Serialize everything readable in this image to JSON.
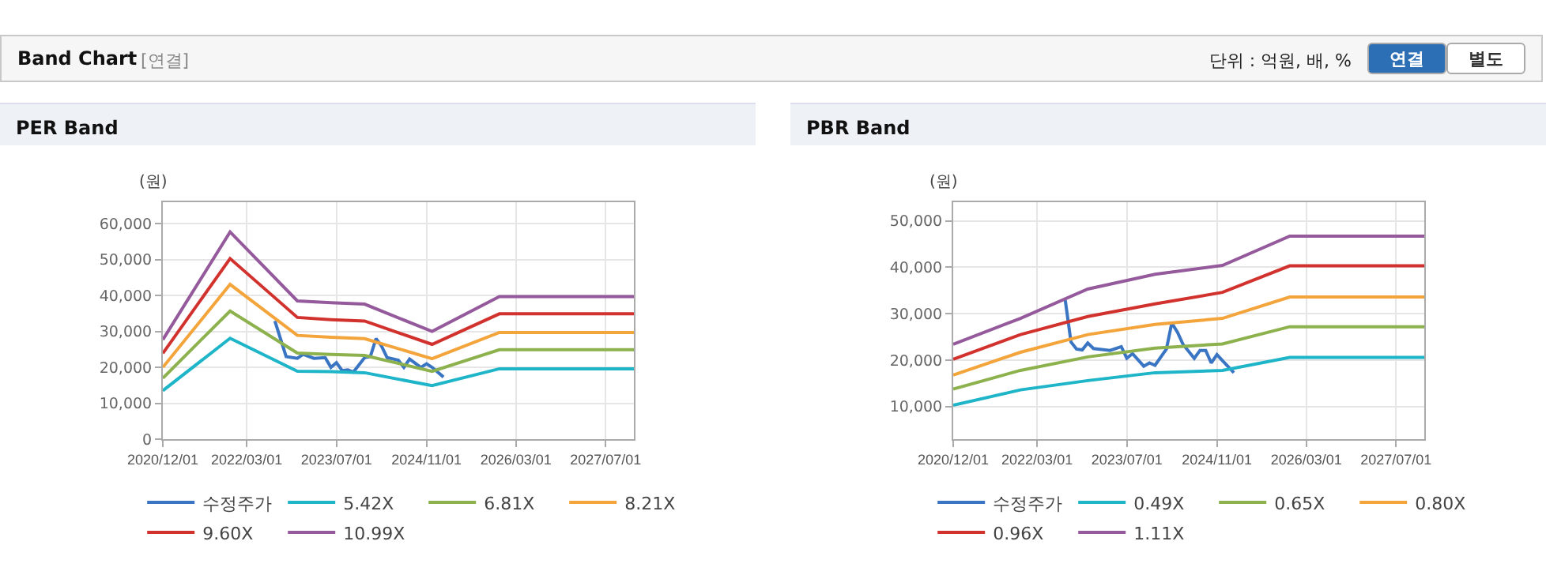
{
  "chart_data": [
    {
      "type": "line",
      "title": "PER Band",
      "ylabel": "(원)",
      "annotations": [
        "Band Chart",
        "[연결]",
        "단위 : 억원, 배, %",
        "연결",
        "별도"
      ],
      "xlim": [
        "2020-12-01",
        "2027-12-01"
      ],
      "xticks": [
        {
          "value": "2020-12-01",
          "label": "2020/12/01"
        },
        {
          "value": "2022-03-01",
          "label": "2022/03/01"
        },
        {
          "value": "2023-07-01",
          "label": "2023/07/01"
        },
        {
          "value": "2024-11-01",
          "label": "2024/11/01"
        },
        {
          "value": "2026-03-01",
          "label": "2026/03/01"
        },
        {
          "value": "2027-07-01",
          "label": "2027/07/01"
        }
      ],
      "ylim": [
        0,
        66000
      ],
      "yticks": [
        0,
        {
          "value": 10000,
          "label": "10,000"
        },
        {
          "value": 20000,
          "label": "20,000"
        },
        {
          "value": 30000,
          "label": "30,000"
        },
        {
          "value": 40000,
          "label": "40,000"
        },
        {
          "value": 50000,
          "label": "50,000"
        },
        {
          "value": 60000,
          "label": "60,000"
        }
      ],
      "grid": true,
      "legend": "bottom",
      "marker": "none",
      "line_style": "solid",
      "series": [
        {
          "name": "수정주가",
          "color": "#3a75c4",
          "x": [
            "2022-08",
            "2022-10",
            "2022-12",
            "2023-01",
            "2023-03",
            "2023-05",
            "2023-06",
            "2023-07",
            "2023-08",
            "2023-09",
            "2023-10",
            "2023-12",
            "2024-01",
            "2024-02",
            "2024-03",
            "2024-04",
            "2024-06",
            "2024-07",
            "2024-08",
            "2024-10",
            "2024-11",
            "2024-12",
            "2025-02"
          ],
          "values": [
            32900,
            23000,
            22500,
            23600,
            22500,
            22700,
            20000,
            21300,
            19100,
            19300,
            18700,
            22700,
            23000,
            28000,
            26000,
            22700,
            22000,
            20000,
            22300,
            20000,
            21000,
            20000,
            17300
          ]
        },
        {
          "name": "5.42X",
          "color": "#1fb5c9",
          "x": [
            "2020-12",
            "2021-12",
            "2022-12",
            "2023-06",
            "2023-12",
            "2024-12",
            "2025-12",
            "2027-12"
          ],
          "values": [
            13500,
            28100,
            18900,
            18800,
            18500,
            14900,
            19600,
            19600
          ]
        },
        {
          "name": "6.81X",
          "color": "#8db24d",
          "x": [
            "2020-12",
            "2021-12",
            "2022-12",
            "2023-06",
            "2023-12",
            "2024-12",
            "2025-12",
            "2027-12"
          ],
          "values": [
            17000,
            35700,
            24000,
            23600,
            23300,
            18900,
            24900,
            24900
          ]
        },
        {
          "name": "8.21X",
          "color": "#f3a43b",
          "x": [
            "2020-12",
            "2021-12",
            "2022-12",
            "2023-06",
            "2023-12",
            "2024-12",
            "2025-12",
            "2027-12"
          ],
          "values": [
            20000,
            43100,
            28900,
            28400,
            28000,
            22400,
            29700,
            29700
          ]
        },
        {
          "name": "9.60X",
          "color": "#d2322d",
          "x": [
            "2020-12",
            "2021-12",
            "2022-12",
            "2023-06",
            "2023-12",
            "2024-12",
            "2025-12",
            "2027-12"
          ],
          "values": [
            23900,
            50300,
            33900,
            33300,
            32900,
            26400,
            34900,
            34900
          ]
        },
        {
          "name": "10.99X",
          "color": "#945a9c",
          "x": [
            "2020-12",
            "2021-12",
            "2022-12",
            "2023-06",
            "2023-12",
            "2024-12",
            "2025-12",
            "2027-12"
          ],
          "values": [
            27700,
            57700,
            38500,
            38000,
            37600,
            30000,
            39700,
            39700
          ]
        }
      ]
    },
    {
      "type": "line",
      "title": "PBR Band",
      "ylabel": "(원)",
      "xlim": [
        "2020-12-01",
        "2027-12-01"
      ],
      "xticks": [
        {
          "value": "2020-12-01",
          "label": "2020/12/01"
        },
        {
          "value": "2022-03-01",
          "label": "2022/03/01"
        },
        {
          "value": "2023-07-01",
          "label": "2023/07/01"
        },
        {
          "value": "2024-11-01",
          "label": "2024/11/01"
        },
        {
          "value": "2026-03-01",
          "label": "2026/03/01"
        },
        {
          "value": "2027-07-01",
          "label": "2027/07/01"
        }
      ],
      "ylim": [
        3000,
        54000
      ],
      "yticks": [
        {
          "value": 10000,
          "label": "10,000"
        },
        {
          "value": 20000,
          "label": "20,000"
        },
        {
          "value": 30000,
          "label": "30,000"
        },
        {
          "value": 40000,
          "label": "40,000"
        },
        {
          "value": 50000,
          "label": "50,000"
        }
      ],
      "grid": true,
      "legend": "bottom",
      "marker": "none",
      "line_style": "solid",
      "series": [
        {
          "name": "수정주가",
          "color": "#3a75c4",
          "x": [
            "2022-08",
            "2022-09",
            "2022-10",
            "2022-11",
            "2022-12",
            "2023-01",
            "2023-04",
            "2023-06",
            "2023-07",
            "2023-08",
            "2023-10",
            "2023-11",
            "2023-12",
            "2024-02",
            "2024-03",
            "2024-04",
            "2024-05",
            "2024-07",
            "2024-08",
            "2024-09",
            "2024-10",
            "2024-11",
            "2024-12",
            "2025-02"
          ],
          "values": [
            32900,
            23900,
            22400,
            22200,
            23700,
            22500,
            22100,
            22900,
            20400,
            21400,
            18700,
            19400,
            18900,
            22400,
            28000,
            26000,
            23400,
            20400,
            22100,
            22100,
            19400,
            21200,
            19900,
            17300
          ]
        },
        {
          "name": "0.49X",
          "color": "#1fb5c9",
          "x": [
            "2020-12",
            "2021-12",
            "2022-12",
            "2023-12",
            "2024-12",
            "2025-12",
            "2027-12"
          ],
          "values": [
            10300,
            13600,
            15600,
            17300,
            17800,
            20600,
            20600
          ]
        },
        {
          "name": "0.65X",
          "color": "#8db24d",
          "x": [
            "2020-12",
            "2021-12",
            "2022-12",
            "2023-12",
            "2024-12",
            "2025-12",
            "2027-12"
          ],
          "values": [
            13800,
            17800,
            20700,
            22600,
            23500,
            27200,
            27200
          ]
        },
        {
          "name": "0.80X",
          "color": "#f3a43b",
          "x": [
            "2020-12",
            "2021-12",
            "2022-12",
            "2023-12",
            "2024-12",
            "2025-12",
            "2027-12"
          ],
          "values": [
            16800,
            21700,
            25500,
            27700,
            29000,
            33600,
            33600
          ]
        },
        {
          "name": "0.96X",
          "color": "#d2322d",
          "x": [
            "2020-12",
            "2021-12",
            "2022-12",
            "2023-12",
            "2024-12",
            "2025-12",
            "2027-12"
          ],
          "values": [
            20200,
            25500,
            29400,
            32100,
            34600,
            40300,
            40300
          ]
        },
        {
          "name": "1.11X",
          "color": "#945a9c",
          "x": [
            "2020-12",
            "2021-12",
            "2022-12",
            "2023-12",
            "2024-12",
            "2025-12",
            "2027-12"
          ],
          "values": [
            23400,
            29000,
            35300,
            38500,
            40400,
            46700,
            46700
          ]
        }
      ]
    }
  ]
}
